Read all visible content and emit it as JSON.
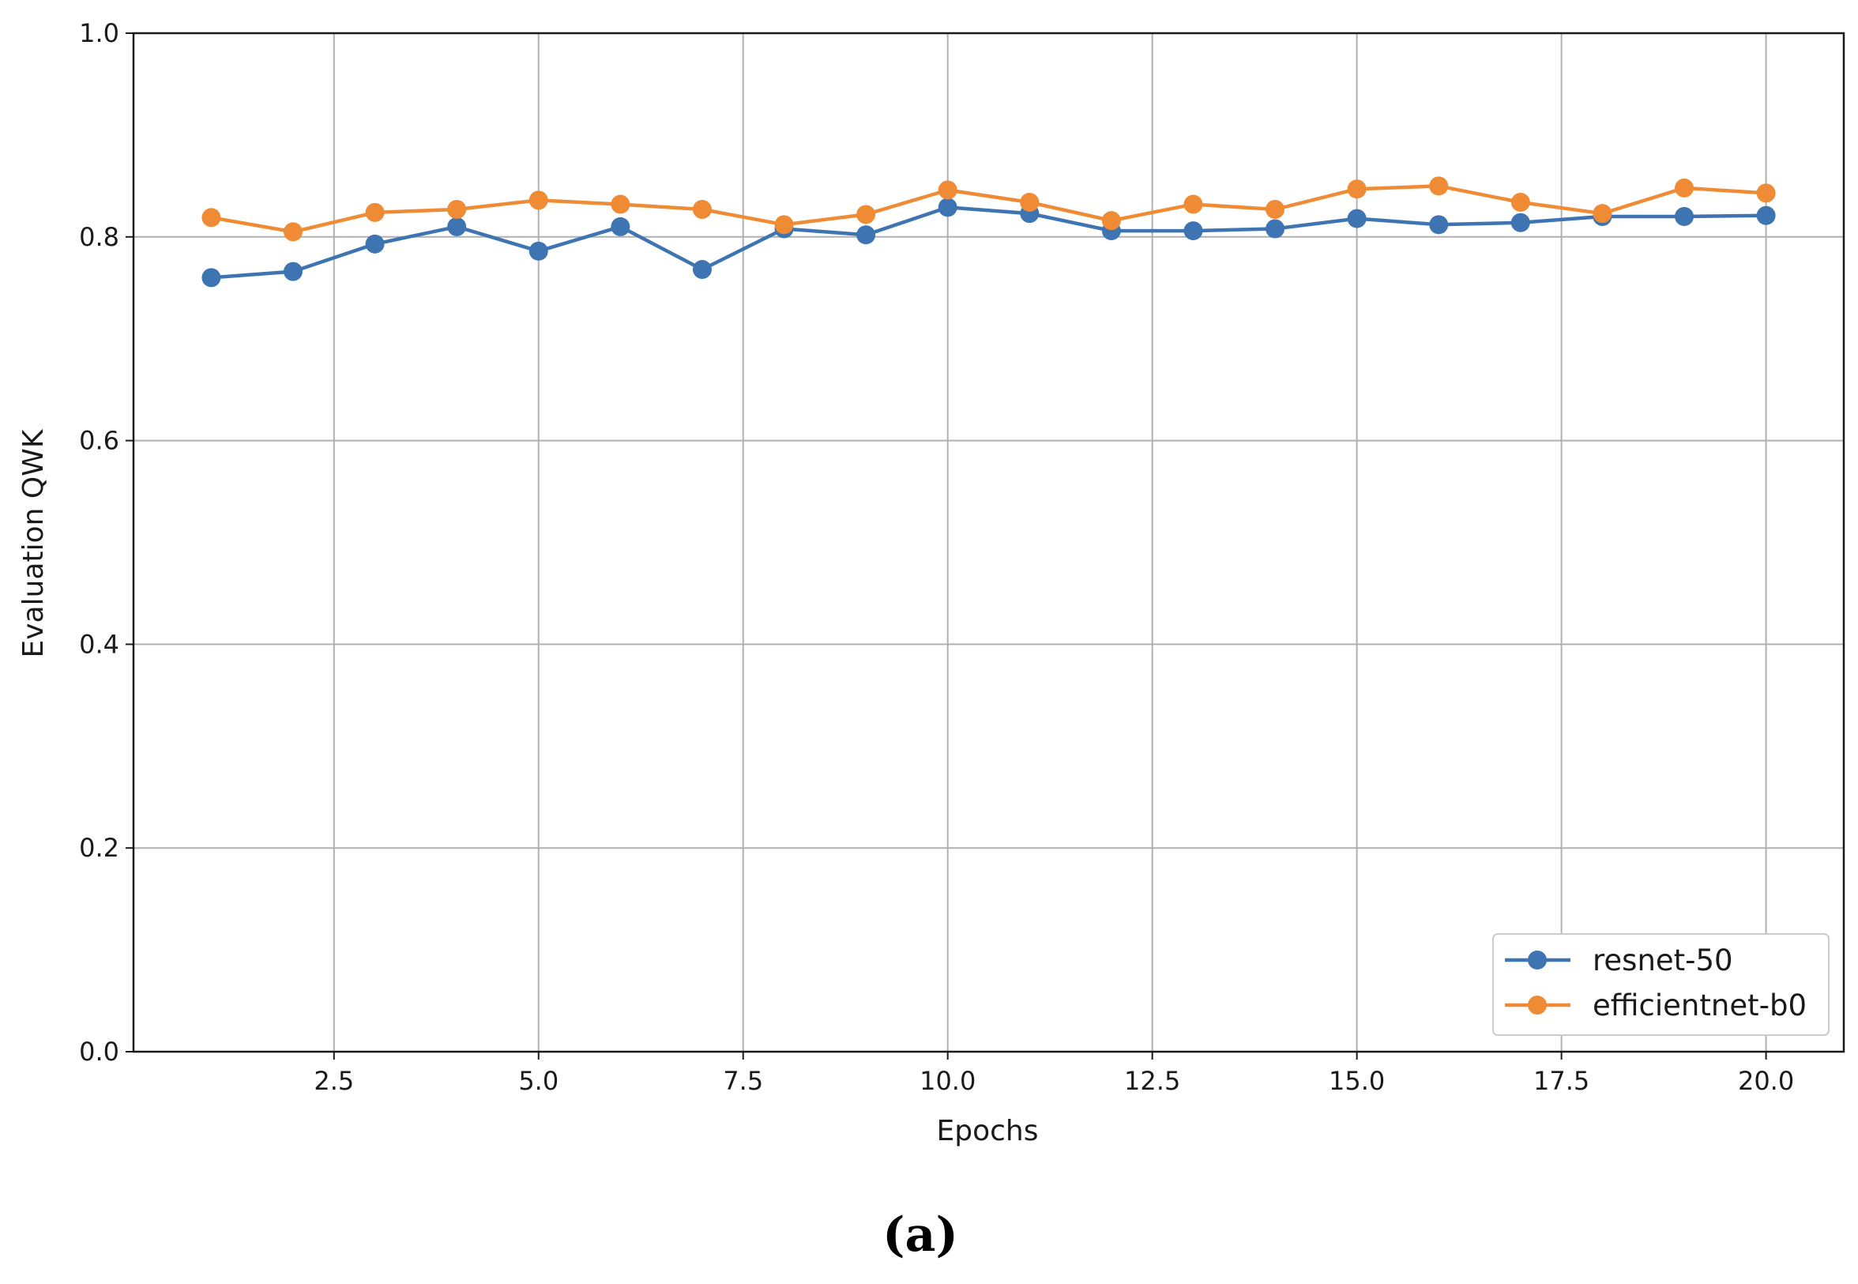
{
  "chart_data": {
    "type": "line",
    "title": "",
    "xlabel": "Epochs",
    "ylabel": "Evaluation QWK",
    "xlim": [
      0.05,
      20.95
    ],
    "ylim": [
      0.0,
      1.0
    ],
    "x_ticks": [
      2.5,
      5.0,
      7.5,
      10.0,
      12.5,
      15.0,
      17.5,
      20.0
    ],
    "x_tick_labels": [
      "2.5",
      "5.0",
      "7.5",
      "10.0",
      "12.5",
      "15.0",
      "17.5",
      "20.0"
    ],
    "y_ticks": [
      0.0,
      0.2,
      0.4,
      0.6,
      0.8,
      1.0
    ],
    "y_tick_labels": [
      "0.0",
      "0.2",
      "0.4",
      "0.6",
      "0.8",
      "1.0"
    ],
    "grid": true,
    "legend_position": "bottom-right",
    "x": [
      1,
      2,
      3,
      4,
      5,
      6,
      7,
      8,
      9,
      10,
      11,
      12,
      13,
      14,
      15,
      16,
      17,
      18,
      19,
      20
    ],
    "series": [
      {
        "name": "resnet-50",
        "color": "#3d74b1",
        "values": [
          0.76,
          0.766,
          0.793,
          0.81,
          0.786,
          0.81,
          0.768,
          0.808,
          0.802,
          0.829,
          0.823,
          0.806,
          0.806,
          0.808,
          0.818,
          0.812,
          0.814,
          0.82,
          0.82,
          0.821
        ]
      },
      {
        "name": "efficientnet-b0",
        "color": "#ef8b35",
        "values": [
          0.819,
          0.805,
          0.824,
          0.827,
          0.836,
          0.832,
          0.827,
          0.812,
          0.822,
          0.846,
          0.834,
          0.816,
          0.832,
          0.827,
          0.847,
          0.85,
          0.834,
          0.823,
          0.848,
          0.843
        ]
      }
    ]
  },
  "caption": "(a)"
}
